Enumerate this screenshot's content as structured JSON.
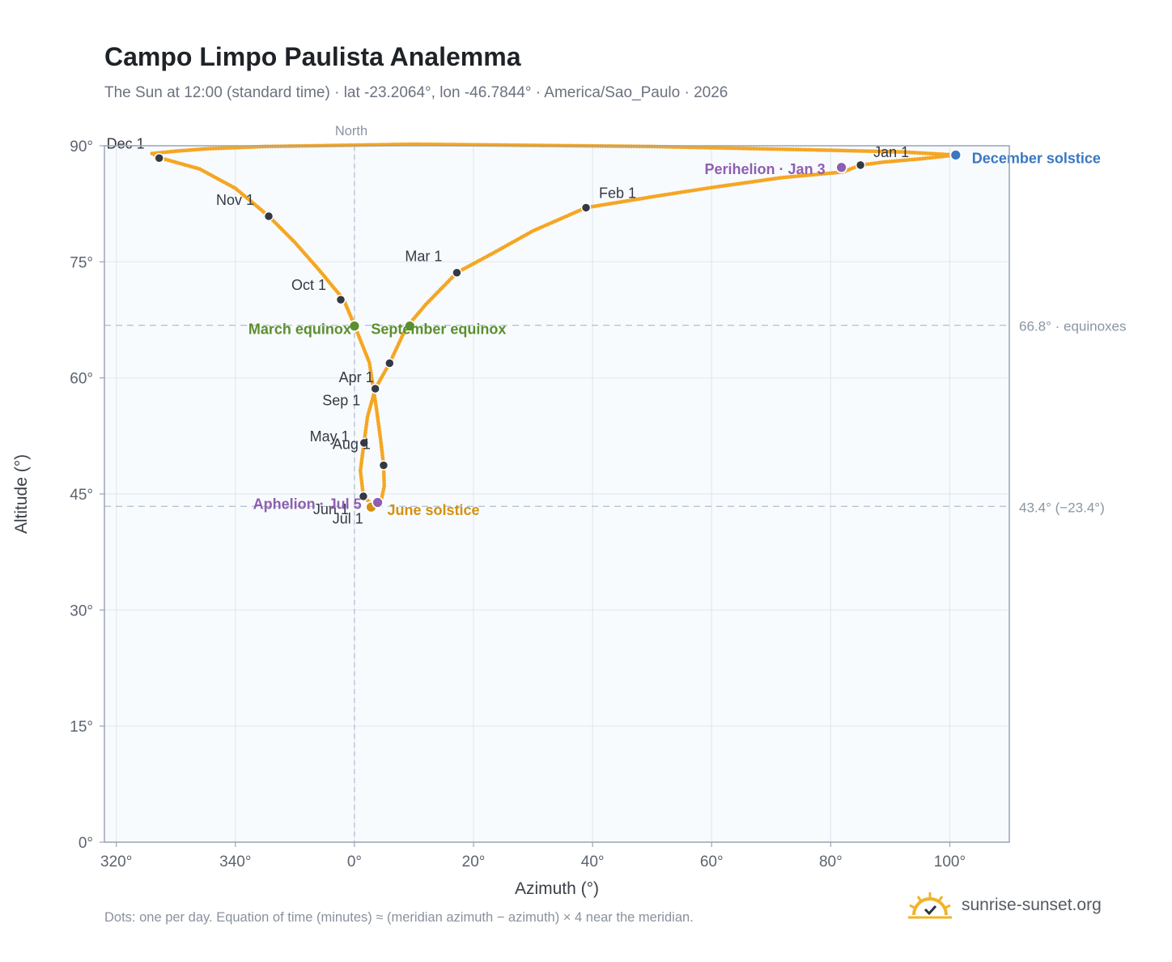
{
  "title": "Campo Limpo Paulista Analemma",
  "subtitle": "The Sun at 12:00 (standard time) · lat -23.2064°, lon -46.7844° · America/Sao_Paulo · 2026",
  "footnote": "Dots: one per day. Equation of time (minutes) ≈ (meridian azimuth − azimuth) × 4 near the meridian.",
  "brand": {
    "name": "sunrise-sunset.org",
    "icon": "sun-logo-icon"
  },
  "colors": {
    "curve": "#f5a623",
    "month_dot": "#333a44",
    "equinox": "#5a8f2e",
    "june_solstice": "#d4910f",
    "december_solstice": "#3a78c0",
    "perihelion": "#8e5fb0",
    "aphelion": "#8e5fb0",
    "plot_bg": "#f8fbfe",
    "grid": "#e3e8ee",
    "reference_line": "#b5c4d2"
  },
  "chart_data": {
    "type": "scatter",
    "title": "Campo Limpo Paulista Analemma",
    "xlabel": "Azimuth (°)",
    "ylabel": "Altitude (°)",
    "xlim": [
      318,
      110
    ],
    "ylim": [
      0,
      90
    ],
    "x_ticks": [
      {
        "value": 320,
        "label": "320°"
      },
      {
        "value": 340,
        "label": "340°"
      },
      {
        "value": 0,
        "label": "0°"
      },
      {
        "value": 20,
        "label": "20°"
      },
      {
        "value": 40,
        "label": "40°"
      },
      {
        "value": 60,
        "label": "60°"
      },
      {
        "value": 80,
        "label": "80°"
      },
      {
        "value": 100,
        "label": "100°"
      }
    ],
    "y_ticks": [
      {
        "value": 0,
        "label": "0°"
      },
      {
        "value": 15,
        "label": "15°"
      },
      {
        "value": 30,
        "label": "30°"
      },
      {
        "value": 45,
        "label": "45°"
      },
      {
        "value": 60,
        "label": "60°"
      },
      {
        "value": 75,
        "label": "75°"
      },
      {
        "value": 90,
        "label": "90°"
      }
    ],
    "grid": true,
    "north_marker": {
      "azimuth": 0,
      "label": "North"
    },
    "reference_lines": [
      {
        "altitude": 66.8,
        "label": "66.8° · equinoxes"
      },
      {
        "altitude": 43.4,
        "label": "43.4° (−23.4°)"
      }
    ],
    "curve_path": [
      [
        85.0,
        87.5
      ],
      [
        82.0,
        86.6
      ],
      [
        72.0,
        85.9
      ],
      [
        60.0,
        84.6
      ],
      [
        50.0,
        83.4
      ],
      [
        38.9,
        82.0
      ],
      [
        30.0,
        79.0
      ],
      [
        23.0,
        76.0
      ],
      [
        17.2,
        73.6
      ],
      [
        12.0,
        69.5
      ],
      [
        8.7,
        66.5
      ],
      [
        5.9,
        61.9
      ],
      [
        3.5,
        58.6
      ],
      [
        2.2,
        55.0
      ],
      [
        1.6,
        51.6
      ],
      [
        1.0,
        48.0
      ],
      [
        1.5,
        44.7
      ],
      [
        3.1,
        43.5
      ],
      [
        4.5,
        44.2
      ],
      [
        5.0,
        46.0
      ],
      [
        4.9,
        48.7
      ],
      [
        4.4,
        52.0
      ],
      [
        3.7,
        56.0
      ],
      [
        2.5,
        62.0
      ],
      [
        0.0,
        66.8
      ],
      [
        -1.8,
        70.1
      ],
      [
        -6.0,
        74.0
      ],
      [
        -10.0,
        77.5
      ],
      [
        -14.4,
        80.9
      ],
      [
        -20.0,
        84.5
      ],
      [
        -26.0,
        87.0
      ],
      [
        -32.5,
        88.4
      ],
      [
        -34.0,
        89.0
      ],
      [
        -30.0,
        89.3
      ],
      [
        -25.0,
        89.6
      ],
      [
        -15.0,
        89.9
      ],
      [
        10.0,
        90.2
      ],
      [
        50.0,
        89.9
      ],
      [
        75.0,
        89.5
      ],
      [
        92.0,
        89.2
      ],
      [
        101.0,
        88.8
      ],
      [
        95.0,
        88.3
      ],
      [
        89.0,
        87.9
      ],
      [
        85.0,
        87.5
      ]
    ],
    "month_markers": [
      {
        "label": "Jan 1",
        "azimuth": 85.0,
        "altitude": 87.5
      },
      {
        "label": "Feb 1",
        "azimuth": 38.9,
        "altitude": 82.0
      },
      {
        "label": "Mar 1",
        "azimuth": 17.2,
        "altitude": 73.6
      },
      {
        "label": "Apr 1",
        "azimuth": 3.5,
        "altitude": 58.6
      },
      {
        "label": "May 1",
        "azimuth": 1.6,
        "altitude": 51.6
      },
      {
        "label": "Jun 1",
        "azimuth": 1.5,
        "altitude": 44.7
      },
      {
        "label": "Jul 1",
        "azimuth": 3.1,
        "altitude": 43.5
      },
      {
        "label": "Aug 1",
        "azimuth": 4.9,
        "altitude": 48.7
      },
      {
        "label": "Sep 1",
        "azimuth": 5.9,
        "altitude": 61.9
      },
      {
        "label": "Oct 1",
        "azimuth": -2.3,
        "altitude": 70.1
      },
      {
        "label": "Nov 1",
        "azimuth": -14.4,
        "altitude": 80.9
      },
      {
        "label": "Dec 1",
        "azimuth": -32.8,
        "altitude": 88.4
      }
    ],
    "events": [
      {
        "label": "March equinox",
        "azimuth": 0.0,
        "altitude": 66.7,
        "color_key": "equinox"
      },
      {
        "label": "September equinox",
        "azimuth": 9.3,
        "altitude": 66.7,
        "color_key": "equinox"
      },
      {
        "label": "June solstice",
        "azimuth": 2.8,
        "altitude": 43.3,
        "color_key": "june_solstice"
      },
      {
        "label": "December solstice",
        "azimuth": 101.0,
        "altitude": 88.8,
        "color_key": "december_solstice"
      },
      {
        "label": "Perihelion · Jan 3",
        "azimuth": 81.8,
        "altitude": 87.2,
        "color_key": "perihelion"
      },
      {
        "label": "Aphelion · Jul 5",
        "azimuth": 3.9,
        "altitude": 43.9,
        "color_key": "aphelion"
      }
    ]
  }
}
